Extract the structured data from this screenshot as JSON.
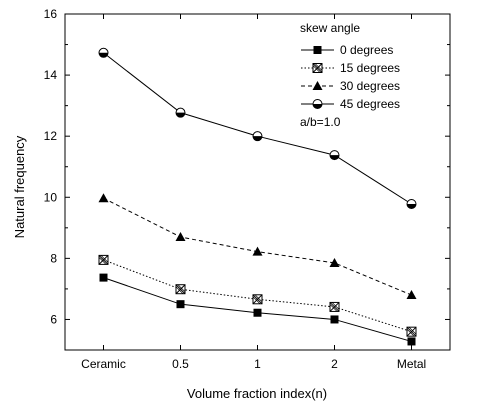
{
  "chart_data": {
    "type": "line",
    "categories": [
      "Ceramic",
      "0.5",
      "1",
      "2",
      "Metal"
    ],
    "xlabel": "Volume fraction index(n)",
    "ylabel": "Natural frequency",
    "ylim": [
      5,
      16
    ],
    "yticks": [
      6,
      8,
      10,
      12,
      14,
      16
    ],
    "legend_title": "skew angle",
    "legend_position": "top-right",
    "annotation": "a/b=1.0",
    "grid": false,
    "series": [
      {
        "name": "0 degrees",
        "marker": "square-filled",
        "dash": "solid",
        "values": [
          7.37,
          6.5,
          6.22,
          6.0,
          5.28
        ]
      },
      {
        "name": "15 degrees",
        "marker": "crossed-square",
        "dash": "dotted",
        "values": [
          7.95,
          6.99,
          6.66,
          6.41,
          5.6
        ]
      },
      {
        "name": "30 degrees",
        "marker": "triangle-filled",
        "dash": "dashed",
        "values": [
          9.97,
          8.7,
          8.22,
          7.85,
          6.8
        ]
      },
      {
        "name": "45 degrees",
        "marker": "half-circle",
        "dash": "solid",
        "values": [
          14.73,
          12.77,
          12.0,
          11.38,
          9.78
        ]
      }
    ]
  }
}
